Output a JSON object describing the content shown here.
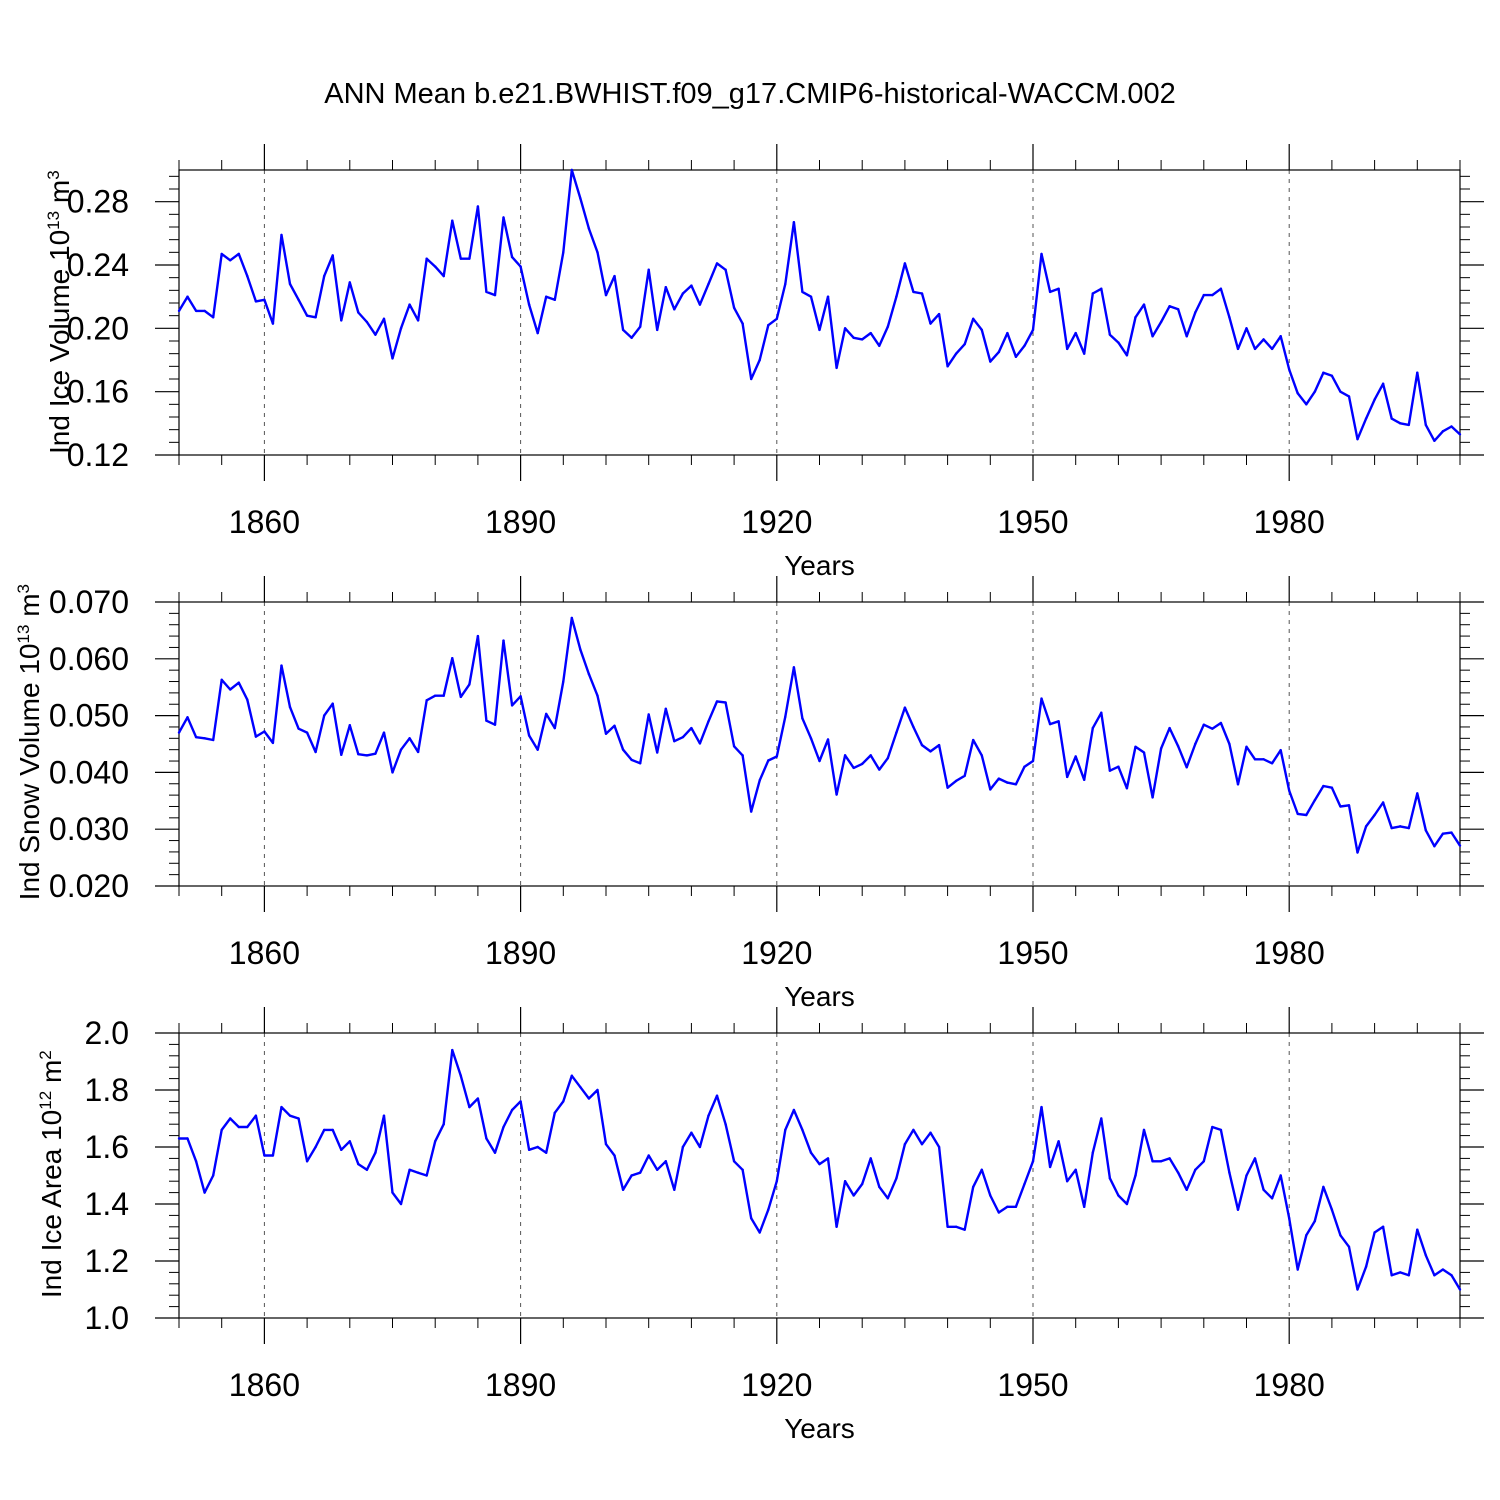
{
  "title": "ANN Mean b.e21.BWHIST.f09_g17.CMIP6-historical-WACCM.002",
  "chart_data": [
    {
      "type": "line",
      "ylabel": {
        "text": "Ind Ice Volume 10",
        "exp": "13",
        "unit": " m",
        "unit_exp": "3"
      },
      "xlabel": "Years",
      "xlim": [
        1850,
        2000
      ],
      "ylim": [
        0.12,
        0.3
      ],
      "yticks": [
        "0.12",
        "0.16",
        "0.20",
        "0.24",
        "0.28"
      ],
      "ytick_values": [
        0.12,
        0.16,
        0.2,
        0.24,
        0.28
      ],
      "xticks": [
        1860,
        1890,
        1920,
        1950,
        1980
      ],
      "grid": "dashed vertical at major x ticks",
      "color": "#0000ff",
      "x_start": 1850,
      "values": [
        0.211,
        0.22,
        0.211,
        0.211,
        0.207,
        0.247,
        0.243,
        0.247,
        0.233,
        0.217,
        0.218,
        0.203,
        0.259,
        0.228,
        0.218,
        0.208,
        0.207,
        0.233,
        0.246,
        0.205,
        0.229,
        0.21,
        0.204,
        0.196,
        0.206,
        0.181,
        0.2,
        0.215,
        0.205,
        0.244,
        0.239,
        0.233,
        0.268,
        0.244,
        0.244,
        0.277,
        0.223,
        0.221,
        0.27,
        0.245,
        0.239,
        0.215,
        0.197,
        0.22,
        0.218,
        0.248,
        0.3,
        0.282,
        0.263,
        0.248,
        0.221,
        0.233,
        0.199,
        0.194,
        0.201,
        0.237,
        0.199,
        0.226,
        0.212,
        0.222,
        0.227,
        0.215,
        0.228,
        0.241,
        0.237,
        0.213,
        0.203,
        0.168,
        0.18,
        0.202,
        0.206,
        0.228,
        0.267,
        0.223,
        0.22,
        0.199,
        0.22,
        0.175,
        0.2,
        0.194,
        0.193,
        0.197,
        0.189,
        0.201,
        0.22,
        0.241,
        0.223,
        0.222,
        0.203,
        0.209,
        0.176,
        0.184,
        0.19,
        0.206,
        0.199,
        0.179,
        0.185,
        0.197,
        0.182,
        0.189,
        0.199,
        0.247,
        0.223,
        0.225,
        0.187,
        0.197,
        0.184,
        0.222,
        0.225,
        0.196,
        0.191,
        0.183,
        0.207,
        0.215,
        0.195,
        0.204,
        0.214,
        0.212,
        0.195,
        0.21,
        0.221,
        0.221,
        0.225,
        0.207,
        0.187,
        0.2,
        0.187,
        0.193,
        0.187,
        0.195,
        0.174,
        0.159,
        0.152,
        0.16,
        0.172,
        0.17,
        0.16,
        0.157,
        0.13,
        0.143,
        0.155,
        0.165,
        0.143,
        0.14,
        0.139,
        0.172,
        0.139,
        0.129,
        0.135,
        0.138,
        0.133
      ]
    },
    {
      "type": "line",
      "ylabel": {
        "text": "Ind Snow Volume 10",
        "exp": "13",
        "unit": " m",
        "unit_exp": "3"
      },
      "xlabel": "Years",
      "xlim": [
        1850,
        2000
      ],
      "ylim": [
        0.02,
        0.07
      ],
      "yticks": [
        "0.020",
        "0.030",
        "0.040",
        "0.050",
        "0.060",
        "0.070"
      ],
      "ytick_values": [
        0.02,
        0.03,
        0.04,
        0.05,
        0.06,
        0.07
      ],
      "xticks": [
        1860,
        1890,
        1920,
        1950,
        1980
      ],
      "grid": "dashed vertical at major x ticks",
      "color": "#0000ff",
      "x_start": 1850,
      "values": [
        0.047,
        0.0497,
        0.0462,
        0.046,
        0.0457,
        0.0563,
        0.0546,
        0.0558,
        0.0528,
        0.0463,
        0.0472,
        0.0452,
        0.0588,
        0.0515,
        0.0477,
        0.047,
        0.0436,
        0.05,
        0.0521,
        0.0431,
        0.0483,
        0.0432,
        0.043,
        0.0433,
        0.047,
        0.04,
        0.044,
        0.046,
        0.0436,
        0.0527,
        0.0535,
        0.0535,
        0.0601,
        0.0533,
        0.0555,
        0.064,
        0.0491,
        0.0484,
        0.0632,
        0.0518,
        0.0534,
        0.0465,
        0.044,
        0.0503,
        0.0478,
        0.056,
        0.0672,
        0.0616,
        0.0573,
        0.0535,
        0.0468,
        0.0482,
        0.044,
        0.0422,
        0.0416,
        0.0502,
        0.0435,
        0.0512,
        0.0455,
        0.0462,
        0.0478,
        0.0451,
        0.049,
        0.0525,
        0.0523,
        0.0446,
        0.043,
        0.0331,
        0.0386,
        0.0421,
        0.0428,
        0.0498,
        0.0585,
        0.0495,
        0.046,
        0.042,
        0.0458,
        0.0361,
        0.043,
        0.0408,
        0.0415,
        0.043,
        0.0405,
        0.0425,
        0.047,
        0.0514,
        0.048,
        0.0448,
        0.0437,
        0.0448,
        0.0373,
        0.0385,
        0.0394,
        0.0457,
        0.043,
        0.037,
        0.0389,
        0.0382,
        0.0379,
        0.041,
        0.042,
        0.053,
        0.0485,
        0.049,
        0.0392,
        0.0428,
        0.0387,
        0.0478,
        0.0505,
        0.0403,
        0.041,
        0.0372,
        0.0445,
        0.0435,
        0.0356,
        0.0442,
        0.0478,
        0.0446,
        0.0409,
        0.045,
        0.0484,
        0.0477,
        0.0487,
        0.045,
        0.0379,
        0.0445,
        0.0423,
        0.0423,
        0.0416,
        0.0439,
        0.0368,
        0.0327,
        0.0325,
        0.0351,
        0.0376,
        0.0373,
        0.034,
        0.0342,
        0.0259,
        0.0305,
        0.0325,
        0.0347,
        0.0302,
        0.0305,
        0.0302,
        0.0363,
        0.0298,
        0.027,
        0.0292,
        0.0294,
        0.0271
      ]
    },
    {
      "type": "line",
      "ylabel": {
        "text": "Ind Ice Area 10",
        "exp": "12",
        "unit": " m",
        "unit_exp": "2"
      },
      "xlabel": "Years",
      "xlim": [
        1850,
        2000
      ],
      "ylim": [
        1.0,
        2.0
      ],
      "yticks": [
        "1.0",
        "1.2",
        "1.4",
        "1.6",
        "1.8",
        "2.0"
      ],
      "ytick_values": [
        1.0,
        1.2,
        1.4,
        1.6,
        1.8,
        2.0
      ],
      "xticks": [
        1860,
        1890,
        1920,
        1950,
        1980
      ],
      "grid": "dashed vertical at major x ticks",
      "color": "#0000ff",
      "x_start": 1850,
      "values": [
        1.63,
        1.63,
        1.55,
        1.44,
        1.5,
        1.66,
        1.7,
        1.67,
        1.67,
        1.71,
        1.57,
        1.57,
        1.74,
        1.71,
        1.7,
        1.55,
        1.6,
        1.66,
        1.66,
        1.59,
        1.62,
        1.54,
        1.52,
        1.58,
        1.71,
        1.44,
        1.4,
        1.52,
        1.51,
        1.5,
        1.62,
        1.68,
        1.94,
        1.85,
        1.74,
        1.77,
        1.63,
        1.58,
        1.67,
        1.73,
        1.76,
        1.59,
        1.6,
        1.58,
        1.72,
        1.76,
        1.85,
        1.81,
        1.77,
        1.8,
        1.61,
        1.57,
        1.45,
        1.5,
        1.51,
        1.57,
        1.52,
        1.55,
        1.45,
        1.6,
        1.65,
        1.6,
        1.71,
        1.78,
        1.68,
        1.55,
        1.52,
        1.35,
        1.3,
        1.38,
        1.48,
        1.66,
        1.73,
        1.66,
        1.58,
        1.54,
        1.56,
        1.32,
        1.48,
        1.43,
        1.47,
        1.56,
        1.46,
        1.42,
        1.49,
        1.61,
        1.66,
        1.61,
        1.65,
        1.6,
        1.32,
        1.32,
        1.31,
        1.46,
        1.52,
        1.43,
        1.37,
        1.39,
        1.39,
        1.47,
        1.55,
        1.74,
        1.53,
        1.62,
        1.48,
        1.52,
        1.39,
        1.58,
        1.7,
        1.49,
        1.43,
        1.4,
        1.5,
        1.66,
        1.55,
        1.55,
        1.56,
        1.51,
        1.45,
        1.52,
        1.55,
        1.67,
        1.66,
        1.51,
        1.38,
        1.5,
        1.56,
        1.45,
        1.42,
        1.5,
        1.35,
        1.17,
        1.29,
        1.34,
        1.46,
        1.38,
        1.29,
        1.25,
        1.1,
        1.18,
        1.3,
        1.32,
        1.15,
        1.16,
        1.15,
        1.31,
        1.22,
        1.15,
        1.17,
        1.15,
        1.1
      ]
    }
  ]
}
